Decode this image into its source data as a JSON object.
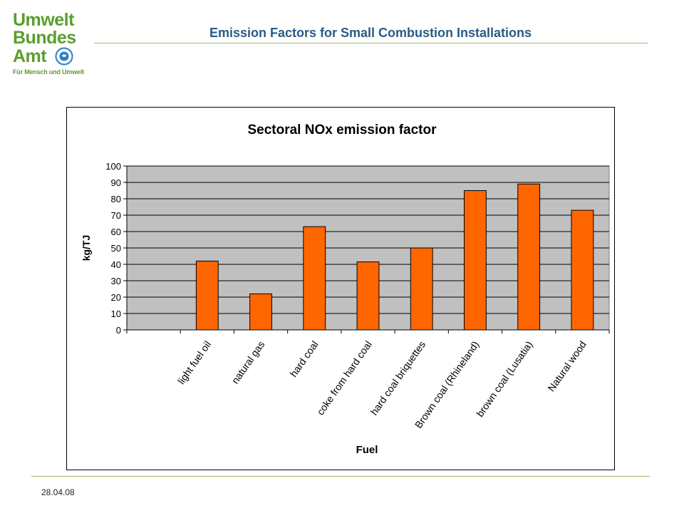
{
  "logo": {
    "line1": "Umwelt",
    "line2": "Bundes",
    "line3": "Amt",
    "tagline": "Für Mensch und Umwelt"
  },
  "header": {
    "title": "Emission Factors for Small Combustion Installations"
  },
  "footer": {
    "date": "28.04.08"
  },
  "colors": {
    "brand_green": "#5a9e2e",
    "title_blue": "#2a5b86",
    "bar": "#ff6600",
    "plot_bg": "#c0c0c0"
  },
  "chart_data": {
    "type": "bar",
    "title": "Sectoral NOx emission factor",
    "xlabel": "Fuel",
    "ylabel": "kg/TJ",
    "ylim": [
      0,
      100
    ],
    "yticks": [
      0,
      10,
      20,
      30,
      40,
      50,
      60,
      70,
      80,
      90,
      100
    ],
    "grid": true,
    "legend": "none",
    "categories": [
      "",
      "light fuel oil",
      "natural gas",
      "hard coal",
      "coke from hard coal",
      "hard coal briquettes",
      "Brown coal (Rhineland)",
      "brown coal (Lusatia)",
      "Natural wood"
    ],
    "values": [
      null,
      42,
      22,
      63,
      41.5,
      50,
      85,
      89,
      73
    ]
  }
}
